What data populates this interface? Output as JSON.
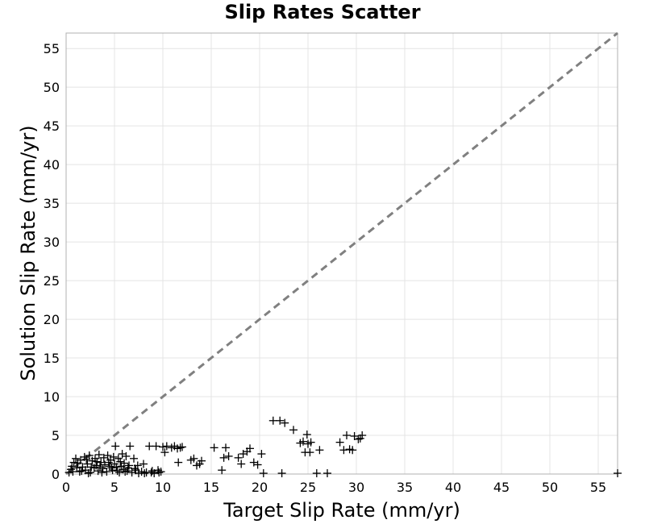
{
  "chart_data": {
    "type": "scatter",
    "title": "Slip Rates Scatter",
    "xlabel": "Target Slip Rate (mm/yr)",
    "ylabel": "Solution Slip Rate (mm/yr)",
    "xlim": [
      0,
      57
    ],
    "ylim": [
      0,
      57
    ],
    "x_ticks": [
      0,
      5,
      10,
      15,
      20,
      25,
      30,
      35,
      40,
      45,
      50,
      55
    ],
    "y_ticks": [
      0,
      5,
      10,
      15,
      20,
      25,
      30,
      35,
      40,
      45,
      50,
      55
    ],
    "grid": true,
    "reference_line": {
      "style": "dashed",
      "color": "#808080",
      "from": [
        0,
        0
      ],
      "to": [
        57,
        57
      ]
    },
    "marker": "plus",
    "marker_color": "#000000",
    "points": [
      [
        0.3,
        0.2
      ],
      [
        0.5,
        0.6
      ],
      [
        0.6,
        1.0
      ],
      [
        0.8,
        1.5
      ],
      [
        1.0,
        2.0
      ],
      [
        1.2,
        1.4
      ],
      [
        1.4,
        0.3
      ],
      [
        1.5,
        1.8
      ],
      [
        1.7,
        0.9
      ],
      [
        1.9,
        2.2
      ],
      [
        2.0,
        0.5
      ],
      [
        2.2,
        1.3
      ],
      [
        2.4,
        2.4
      ],
      [
        2.5,
        0.2
      ],
      [
        2.7,
        1.7
      ],
      [
        2.9,
        0.8
      ],
      [
        3.0,
        2.0
      ],
      [
        3.1,
        1.1
      ],
      [
        3.3,
        0.4
      ],
      [
        3.4,
        2.5
      ],
      [
        3.6,
        1.5
      ],
      [
        3.8,
        0.7
      ],
      [
        3.9,
        2.1
      ],
      [
        4.0,
        1.2
      ],
      [
        4.2,
        0.3
      ],
      [
        4.3,
        2.4
      ],
      [
        4.5,
        1.0
      ],
      [
        4.6,
        1.8
      ],
      [
        4.8,
        0.5
      ],
      [
        4.9,
        2.2
      ],
      [
        5.0,
        1.3
      ],
      [
        5.1,
        3.6
      ],
      [
        5.2,
        0.9
      ],
      [
        5.4,
        2.0
      ],
      [
        5.5,
        0.2
      ],
      [
        5.6,
        1.6
      ],
      [
        5.8,
        2.6
      ],
      [
        5.9,
        0.6
      ],
      [
        6.0,
        1.4
      ],
      [
        6.2,
        2.3
      ],
      [
        6.3,
        0.4
      ],
      [
        6.5,
        1.1
      ],
      [
        6.6,
        3.6
      ],
      [
        6.8,
        0.2
      ],
      [
        7.0,
        2.0
      ],
      [
        7.2,
        0.5
      ],
      [
        7.5,
        0.1
      ],
      [
        7.8,
        0.3
      ],
      [
        8.0,
        1.3
      ],
      [
        8.3,
        0.2
      ],
      [
        8.6,
        3.6
      ],
      [
        8.9,
        0.4
      ],
      [
        9.1,
        0.1
      ],
      [
        9.3,
        3.6
      ],
      [
        9.6,
        0.2
      ],
      [
        9.8,
        0.3
      ],
      [
        10.0,
        3.5
      ],
      [
        10.2,
        2.8
      ],
      [
        10.4,
        3.6
      ],
      [
        10.9,
        3.4
      ],
      [
        11.2,
        3.6
      ],
      [
        11.5,
        3.3
      ],
      [
        11.6,
        1.5
      ],
      [
        11.8,
        3.4
      ],
      [
        12.0,
        3.5
      ],
      [
        12.9,
        1.8
      ],
      [
        13.2,
        2.0
      ],
      [
        13.5,
        1.1
      ],
      [
        13.8,
        1.3
      ],
      [
        14.0,
        1.7
      ],
      [
        15.3,
        3.4
      ],
      [
        16.1,
        0.5
      ],
      [
        16.3,
        2.1
      ],
      [
        16.5,
        3.4
      ],
      [
        16.8,
        2.3
      ],
      [
        17.8,
        2.1
      ],
      [
        18.1,
        1.3
      ],
      [
        18.3,
        2.6
      ],
      [
        18.7,
        2.9
      ],
      [
        19.0,
        3.3
      ],
      [
        19.4,
        1.5
      ],
      [
        19.8,
        1.2
      ],
      [
        20.2,
        2.6
      ],
      [
        20.4,
        0.1
      ],
      [
        21.4,
        6.9
      ],
      [
        22.1,
        6.9
      ],
      [
        22.3,
        0.1
      ],
      [
        22.6,
        6.6
      ],
      [
        23.5,
        5.7
      ],
      [
        24.2,
        4.0
      ],
      [
        24.5,
        4.2
      ],
      [
        24.7,
        2.8
      ],
      [
        24.9,
        5.1
      ],
      [
        25.0,
        3.9
      ],
      [
        25.2,
        2.8
      ],
      [
        25.3,
        4.1
      ],
      [
        25.9,
        0.1
      ],
      [
        26.2,
        3.1
      ],
      [
        27.0,
        0.1
      ],
      [
        28.3,
        4.1
      ],
      [
        28.7,
        3.1
      ],
      [
        29.0,
        5.0
      ],
      [
        29.3,
        3.2
      ],
      [
        29.6,
        3.1
      ],
      [
        29.8,
        4.9
      ],
      [
        30.2,
        4.5
      ],
      [
        30.4,
        4.6
      ],
      [
        30.6,
        5.0
      ],
      [
        57.0,
        0.1
      ],
      [
        0.7,
        0.3
      ],
      [
        1.1,
        0.8
      ],
      [
        1.6,
        0.4
      ],
      [
        2.1,
        1.9
      ],
      [
        2.6,
        0.9
      ],
      [
        3.2,
        1.6
      ],
      [
        3.7,
        0.2
      ],
      [
        4.4,
        1.5
      ],
      [
        4.7,
        0.8
      ],
      [
        5.3,
        0.4
      ],
      [
        5.7,
        1.0
      ],
      [
        6.1,
        0.3
      ],
      [
        6.4,
        0.8
      ],
      [
        7.1,
        0.7
      ],
      [
        7.4,
        1.1
      ],
      [
        8.1,
        0.1
      ],
      [
        8.8,
        0.2
      ],
      [
        9.5,
        0.5
      ],
      [
        2.3,
        0.1
      ],
      [
        3.5,
        0.9
      ]
    ]
  }
}
